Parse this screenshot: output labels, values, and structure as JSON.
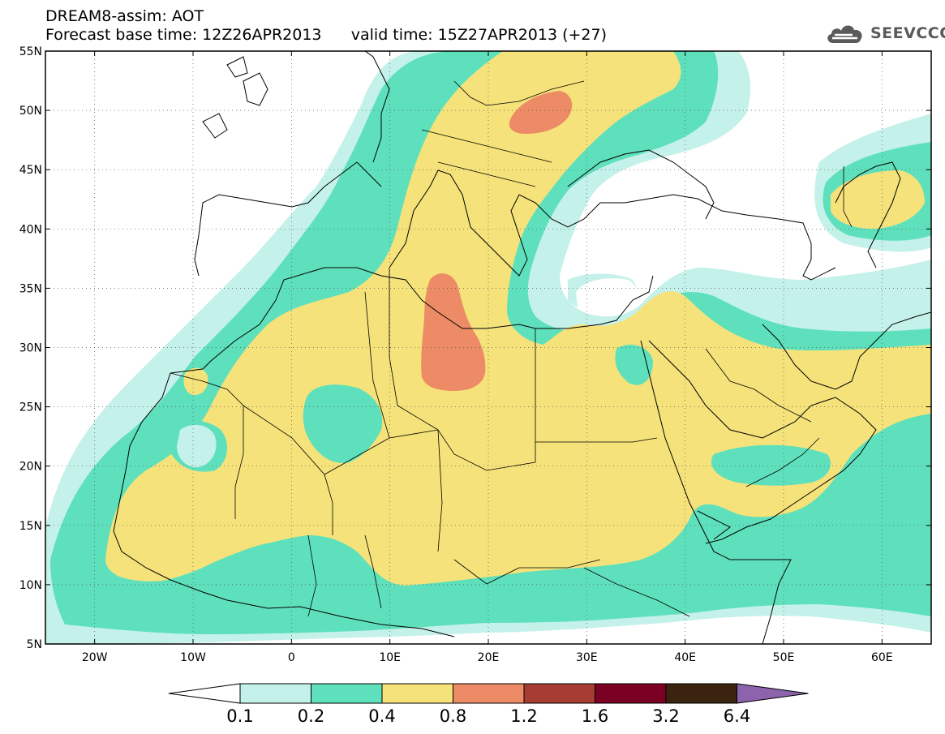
{
  "header": {
    "title": "DREAM8-assim: AOT",
    "forecast_base": "Forecast base time: 12Z26APR2013",
    "valid_time": "valid time: 15Z27APR2013 (+27)",
    "logo_text": "SEEVCCC"
  },
  "map": {
    "lon_range": [
      -25,
      65
    ],
    "lat_range": [
      5,
      55
    ],
    "lat_labels": [
      "55N",
      "50N",
      "45N",
      "40N",
      "35N",
      "30N",
      "25N",
      "20N",
      "15N",
      "10N",
      "5N"
    ],
    "lon_labels": [
      "20W",
      "10W",
      "0",
      "10E",
      "20E",
      "30E",
      "40E",
      "50E",
      "60E"
    ],
    "land_contour_color": "#000000"
  },
  "colorbar": {
    "labels": [
      "0.1",
      "0.2",
      "0.4",
      "0.8",
      "1.2",
      "1.6",
      "3.2",
      "6.4"
    ],
    "colors": [
      "#ffffff",
      "#c4f1ea",
      "#5ee0bc",
      "#f5e27a",
      "#ec8b66",
      "#a63c32",
      "#7a0024",
      "#3a2410",
      "#8e63ad"
    ]
  },
  "legend_levels": [
    {
      "range": "0.1-0.2",
      "color": "#c4f1ea"
    },
    {
      "range": "0.2-0.4",
      "color": "#5ee0bc"
    },
    {
      "range": "0.4-0.8",
      "color": "#f5e27a"
    },
    {
      "range": "0.8-1.2",
      "color": "#ec8b66"
    }
  ]
}
